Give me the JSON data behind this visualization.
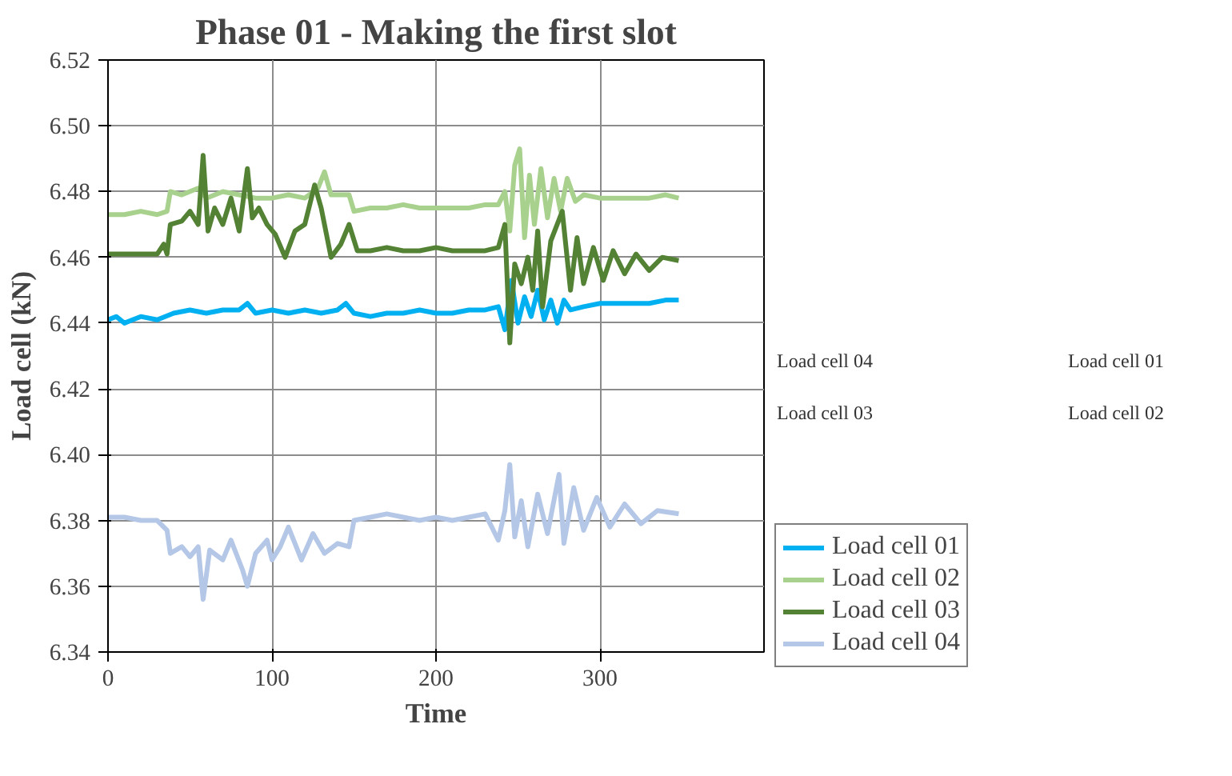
{
  "chart_data": {
    "type": "line",
    "title": "Phase 01 - Making the first slot",
    "xlabel": "Time",
    "ylabel": "Load cell (kN)",
    "xlim": [
      0,
      400
    ],
    "xticks": [
      0,
      100,
      200,
      300
    ],
    "ylim": [
      6.34,
      6.52
    ],
    "yticks": [
      6.34,
      6.36,
      6.38,
      {
        "value": 6.4,
        "label": "6.40"
      },
      6.42,
      6.44,
      6.46,
      6.48,
      {
        "value": 6.5,
        "label": "6.50"
      },
      6.52
    ],
    "grid": true,
    "legend": "bottom right",
    "marker": "none",
    "line_style": "solid",
    "annotations": [
      "Load cell 04",
      "Load cell 03",
      "Load cell 01",
      "Load cell 02"
    ],
    "series": [
      {
        "name": "Load cell 01",
        "color": "#00b0f0",
        "x": [
          0,
          5,
          10,
          15,
          20,
          30,
          40,
          50,
          60,
          70,
          80,
          85,
          90,
          100,
          110,
          120,
          130,
          140,
          145,
          150,
          160,
          170,
          180,
          190,
          200,
          210,
          220,
          230,
          238,
          242,
          246,
          250,
          254,
          258,
          262,
          266,
          270,
          274,
          278,
          282,
          290,
          300,
          310,
          320,
          330,
          340,
          348
        ],
        "values": [
          6.441,
          6.442,
          6.44,
          6.441,
          6.442,
          6.441,
          6.443,
          6.444,
          6.443,
          6.444,
          6.444,
          6.446,
          6.443,
          6.444,
          6.443,
          6.444,
          6.443,
          6.444,
          6.446,
          6.443,
          6.442,
          6.443,
          6.443,
          6.444,
          6.443,
          6.443,
          6.444,
          6.444,
          6.445,
          6.438,
          6.453,
          6.44,
          6.448,
          6.442,
          6.45,
          6.441,
          6.447,
          6.44,
          6.447,
          6.444,
          6.445,
          6.446,
          6.446,
          6.446,
          6.446,
          6.447,
          6.447
        ]
      },
      {
        "name": "Load cell 02",
        "color": "#a9d18e",
        "x": [
          0,
          10,
          20,
          30,
          36,
          38,
          45,
          55,
          60,
          70,
          80,
          90,
          100,
          110,
          120,
          128,
          132,
          136,
          140,
          147,
          150,
          160,
          170,
          180,
          190,
          200,
          210,
          220,
          230,
          238,
          242,
          245,
          248,
          251,
          254,
          257,
          260,
          264,
          268,
          272,
          276,
          280,
          285,
          290,
          300,
          310,
          320,
          330,
          340,
          348
        ],
        "values": [
          6.473,
          6.473,
          6.474,
          6.473,
          6.474,
          6.48,
          6.479,
          6.481,
          6.478,
          6.48,
          6.479,
          6.478,
          6.478,
          6.479,
          6.478,
          6.481,
          6.486,
          6.479,
          6.479,
          6.479,
          6.474,
          6.475,
          6.475,
          6.476,
          6.475,
          6.475,
          6.475,
          6.475,
          6.476,
          6.476,
          6.48,
          6.468,
          6.488,
          6.493,
          6.466,
          6.485,
          6.47,
          6.487,
          6.472,
          6.484,
          6.474,
          6.484,
          6.477,
          6.479,
          6.478,
          6.478,
          6.478,
          6.478,
          6.479,
          6.478
        ]
      },
      {
        "name": "Load cell 03",
        "color": "#548235",
        "x": [
          0,
          10,
          20,
          30,
          34,
          36,
          38,
          45,
          50,
          55,
          58,
          61,
          65,
          70,
          75,
          80,
          85,
          88,
          92,
          97,
          102,
          108,
          114,
          120,
          126,
          130,
          136,
          142,
          147,
          152,
          160,
          170,
          180,
          190,
          200,
          210,
          220,
          230,
          238,
          242,
          245,
          248,
          252,
          256,
          259,
          262,
          265,
          270,
          277,
          282,
          286,
          290,
          296,
          302,
          308,
          315,
          322,
          330,
          338,
          348
        ],
        "values": [
          6.461,
          6.461,
          6.461,
          6.461,
          6.464,
          6.461,
          6.47,
          6.471,
          6.474,
          6.47,
          6.491,
          6.468,
          6.475,
          6.47,
          6.478,
          6.468,
          6.487,
          6.472,
          6.475,
          6.47,
          6.467,
          6.46,
          6.468,
          6.47,
          6.482,
          6.475,
          6.46,
          6.464,
          6.47,
          6.462,
          6.462,
          6.463,
          6.462,
          6.462,
          6.463,
          6.462,
          6.462,
          6.462,
          6.463,
          6.47,
          6.434,
          6.458,
          6.452,
          6.46,
          6.45,
          6.468,
          6.445,
          6.465,
          6.474,
          6.45,
          6.466,
          6.452,
          6.463,
          6.453,
          6.462,
          6.455,
          6.461,
          6.456,
          6.46,
          6.459
        ]
      },
      {
        "name": "Load cell 04",
        "color": "#b4c7e7",
        "x": [
          0,
          10,
          20,
          30,
          36,
          38,
          45,
          50,
          55,
          58,
          62,
          70,
          75,
          82,
          85,
          90,
          97,
          100,
          105,
          110,
          118,
          125,
          132,
          140,
          147,
          150,
          160,
          170,
          180,
          190,
          200,
          210,
          220,
          230,
          238,
          242,
          245,
          248,
          252,
          256,
          262,
          268,
          275,
          278,
          284,
          290,
          298,
          306,
          315,
          325,
          335,
          348
        ],
        "values": [
          6.381,
          6.381,
          6.38,
          6.38,
          6.377,
          6.37,
          6.372,
          6.369,
          6.372,
          6.356,
          6.371,
          6.368,
          6.374,
          6.365,
          6.36,
          6.37,
          6.374,
          6.368,
          6.372,
          6.378,
          6.368,
          6.376,
          6.37,
          6.373,
          6.372,
          6.38,
          6.381,
          6.382,
          6.381,
          6.38,
          6.381,
          6.38,
          6.381,
          6.382,
          6.374,
          6.383,
          6.397,
          6.375,
          6.386,
          6.372,
          6.388,
          6.376,
          6.394,
          6.373,
          6.39,
          6.377,
          6.387,
          6.378,
          6.385,
          6.379,
          6.383,
          6.382
        ]
      }
    ]
  }
}
